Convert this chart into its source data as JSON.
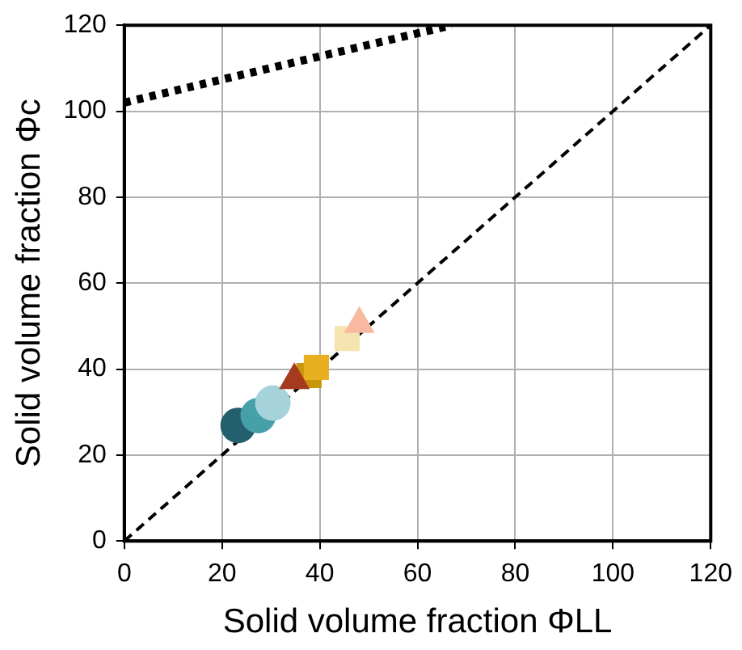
{
  "chart_data": {
    "type": "scatter",
    "xlabel": "Solid volume fraction ΦLL",
    "ylabel": "Solid volume fraction Φc",
    "xlim": [
      0,
      120
    ],
    "ylim": [
      0,
      120
    ],
    "xticks": [
      0,
      20,
      40,
      60,
      80,
      100,
      120
    ],
    "yticks": [
      0,
      20,
      40,
      60,
      80,
      100,
      120
    ],
    "grid": true,
    "legend": false,
    "series": [
      {
        "type": "line",
        "x": [
          0,
          120
        ],
        "values": [
          0,
          120
        ],
        "color": "#000000",
        "line_style": "dashed",
        "marker": "none"
      },
      {
        "type": "line",
        "x": [
          0,
          67
        ],
        "values": [
          102,
          120
        ],
        "color": "#000000",
        "line_style": "dotted",
        "marker": "none"
      },
      {
        "x": [
          23.3
        ],
        "values": [
          26.9
        ],
        "color": "#245f6e",
        "marker": "circle"
      },
      {
        "x": [
          27.4
        ],
        "values": [
          29.2
        ],
        "color": "#45a0a8",
        "marker": "circle"
      },
      {
        "x": [
          30.4
        ],
        "values": [
          32.1
        ],
        "color": "#a6d3db",
        "marker": "circle"
      },
      {
        "x": [
          37.8
        ],
        "values": [
          38.5
        ],
        "color": "#c8960a",
        "marker": "square"
      },
      {
        "x": [
          39.3
        ],
        "values": [
          40.4
        ],
        "color": "#e8b020",
        "marker": "square"
      },
      {
        "x": [
          34.8
        ],
        "values": [
          37.4
        ],
        "color": "#a63a1e",
        "marker": "triangle"
      },
      {
        "x": [
          45.6
        ],
        "values": [
          47.1
        ],
        "color": "#f5e3b0",
        "marker": "square"
      },
      {
        "x": [
          48.1
        ],
        "values": [
          50.5
        ],
        "color": "#f7b9a0",
        "marker": "triangle"
      }
    ]
  }
}
